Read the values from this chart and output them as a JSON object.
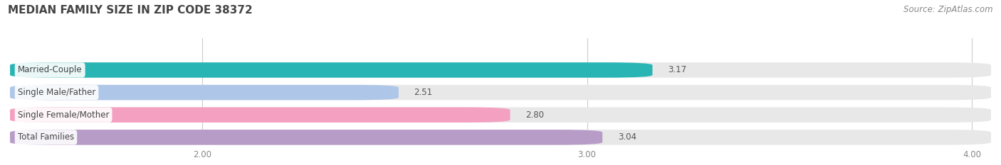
{
  "title": "MEDIAN FAMILY SIZE IN ZIP CODE 38372",
  "source": "Source: ZipAtlas.com",
  "categories": [
    "Married-Couple",
    "Single Male/Father",
    "Single Female/Mother",
    "Total Families"
  ],
  "values": [
    3.17,
    2.51,
    2.8,
    3.04
  ],
  "bar_colors": [
    "#2ab5b5",
    "#aec6e8",
    "#f4a0c0",
    "#b89cc8"
  ],
  "bar_bg_color": "#e8e8e8",
  "xlim_min": 1.5,
  "xlim_max": 4.05,
  "xticks": [
    2.0,
    3.0,
    4.0
  ],
  "xtick_labels": [
    "2.00",
    "3.00",
    "4.00"
  ],
  "background_color": "#ffffff",
  "bar_height": 0.68,
  "label_fontsize": 8.5,
  "value_fontsize": 8.5,
  "title_fontsize": 11,
  "source_fontsize": 8.5,
  "grid_color": "#cccccc",
  "label_text_color": "#444444",
  "value_text_color": "#555555",
  "title_color": "#444444",
  "source_color": "#888888"
}
